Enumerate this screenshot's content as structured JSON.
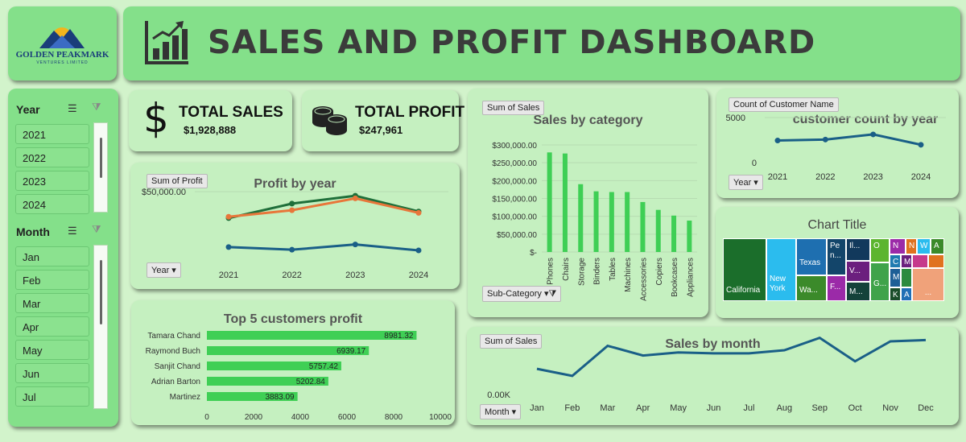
{
  "header": {
    "title": "SALES AND PROFIT DASHBOARD"
  },
  "logo": {
    "name": "GOLDEN PEAKMARK",
    "tagline": "VENTURES LIMITED"
  },
  "slicers": {
    "year": {
      "title": "Year",
      "items": [
        "2021",
        "2022",
        "2023",
        "2024"
      ]
    },
    "month": {
      "title": "Month",
      "items": [
        "Jan",
        "Feb",
        "Mar",
        "Apr",
        "May",
        "Jun",
        "Jul"
      ]
    }
  },
  "kpi": {
    "sales": {
      "label": "TOTAL SALES",
      "value": "$1,928,888"
    },
    "profit": {
      "label": "TOTAL PROFIT",
      "value": "$247,961"
    }
  },
  "profit_chart": {
    "field": "Sum of Profit",
    "axis_field": "Year",
    "title": "Profit by year",
    "ytick": "$50,000.00"
  },
  "top5": {
    "title": "Top 5 customers profit"
  },
  "category_chart": {
    "field": "Sum of Sales",
    "axis_field": "Sub-Category",
    "title": "Sales by category"
  },
  "customer_chart": {
    "field": "Count of Customer Name",
    "axis_field": "Year",
    "title": "customer count by year"
  },
  "treemap": {
    "title": "Chart Title",
    "more": "..."
  },
  "month_chart": {
    "field": "Sum of Sales",
    "axis_field": "Month",
    "title": "Sales by month",
    "ytick": "0.00K"
  },
  "chart_data": [
    {
      "type": "line",
      "title": "Profit by year",
      "x": [
        "2021",
        "2022",
        "2023",
        "2024"
      ],
      "series": [
        {
          "color": "#1f6f3a",
          "values": [
            30000,
            41000,
            47000,
            35000
          ]
        },
        {
          "color": "#e8763a",
          "values": [
            31000,
            36000,
            45000,
            34000
          ]
        },
        {
          "color": "#1a5f87",
          "values": [
            8000,
            6000,
            10000,
            5500
          ]
        }
      ],
      "ylim": [
        0,
        55000
      ],
      "yticks": [
        "$50,000.00"
      ]
    },
    {
      "type": "bar",
      "title": "Top 5 customers profit",
      "orientation": "horizontal",
      "categories": [
        "Tamara Chand",
        "Raymond Buch",
        "Sanjit Chand",
        "Adrian Barton",
        "Martinez"
      ],
      "values": [
        8981.32,
        6939.17,
        5757.42,
        5202.84,
        3883.09
      ],
      "labels": [
        "8981.32",
        "6939.17",
        "5757.42",
        "5202.84",
        "3883.09"
      ],
      "xticks": [
        "0",
        "2000",
        "4000",
        "6000",
        "8000",
        "10000"
      ],
      "xlim": [
        0,
        10000
      ],
      "color": "#3fcf55"
    },
    {
      "type": "bar",
      "title": "Sales by category",
      "categories": [
        "Phones",
        "Chairs",
        "Storage",
        "Binders",
        "Tables",
        "Machines",
        "Accessories",
        "Copiers",
        "Bookcases",
        "Appliances"
      ],
      "values": [
        279000,
        276000,
        190000,
        170000,
        168000,
        168000,
        140000,
        118000,
        102000,
        88000
      ],
      "yticks": [
        "$-",
        "$50,000.00",
        "$100,000.00",
        "$150,000.00",
        "$200,000.00",
        "$250,000.00",
        "$300,000.00"
      ],
      "ylim": [
        0,
        300000
      ],
      "color": "#3fcf55"
    },
    {
      "type": "line",
      "title": "customer count by year",
      "x": [
        "2021",
        "2022",
        "2023",
        "2024"
      ],
      "values": [
        2450,
        2560,
        3130,
        1980
      ],
      "yticks": [
        "0",
        "5000"
      ],
      "ylim": [
        0,
        5000
      ],
      "color": "#1a5f87"
    },
    {
      "type": "line",
      "title": "Sales by month",
      "x": [
        "Jan",
        "Feb",
        "Mar",
        "Apr",
        "May",
        "Jun",
        "Jul",
        "Aug",
        "Sep",
        "Oct",
        "Nov",
        "Dec"
      ],
      "values": [
        58,
        42,
        110,
        88,
        95,
        93,
        93,
        100,
        128,
        75,
        120,
        123
      ],
      "yticks": [
        "0.00K"
      ],
      "color": "#1a5f87"
    },
    {
      "type": "treemap",
      "title": "Chart Title",
      "cells": [
        {
          "label": "California",
          "color": "#1b6e2b"
        },
        {
          "label": "New York",
          "color": "#2bbcee"
        },
        {
          "label": "Texas",
          "color": "#1e6fb0"
        },
        {
          "label": "Wa...",
          "color": "#3b8a2a"
        },
        {
          "label": "Pe n...",
          "color": "#13456a"
        },
        {
          "label": "F...",
          "color": "#9b2aa8"
        },
        {
          "label": "Il...",
          "color": "#12395c"
        },
        {
          "label": "V...",
          "color": "#6b1f7e"
        },
        {
          "label": "M...",
          "color": "#14423a"
        },
        {
          "label": "O",
          "color": "#5cb52f"
        },
        {
          "label": "G...",
          "color": "#3fa34a"
        },
        {
          "label": "C",
          "color": "#1f7bb0"
        },
        {
          "label": "M",
          "color": "#1e5f96"
        },
        {
          "label": "K",
          "color": "#1a4d2a"
        },
        {
          "label": "A",
          "color": "#1f6fb5"
        },
        {
          "label": "N",
          "color": "#9b2aa8"
        },
        {
          "label": "N",
          "color": "#e0721f"
        },
        {
          "label": "W",
          "color": "#2bbcee"
        },
        {
          "label": "A",
          "color": "#3b8a2a"
        },
        {
          "label": "M",
          "color": "#6b1f7e"
        }
      ]
    }
  ]
}
